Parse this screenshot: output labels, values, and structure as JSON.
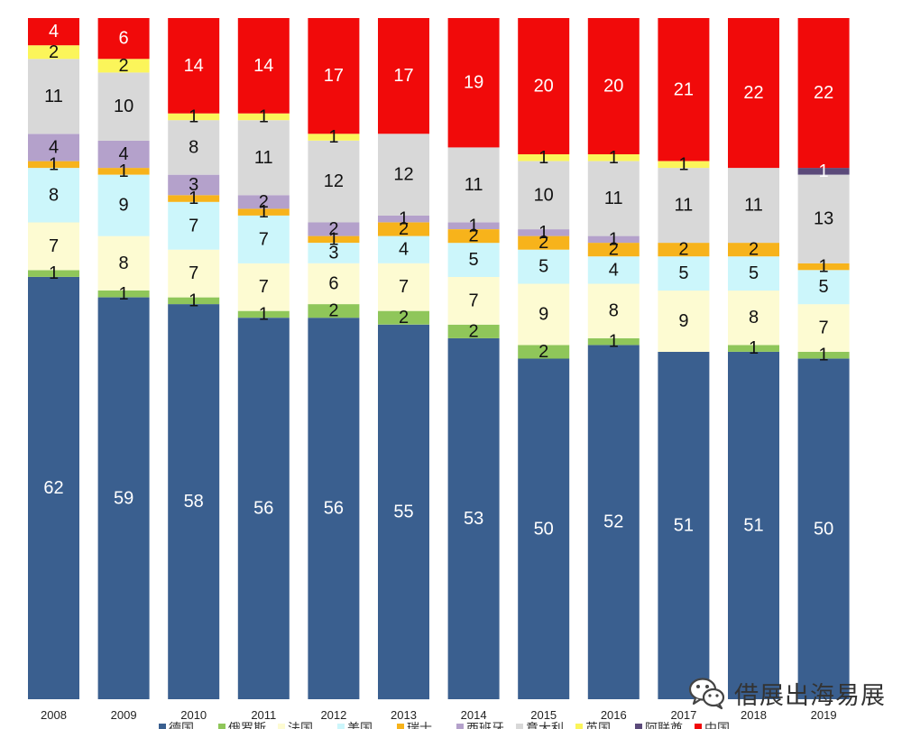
{
  "chart_data": {
    "type": "bar",
    "stacked": true,
    "title": "",
    "xlabel": "",
    "ylabel": "",
    "ylim": [
      0,
      100
    ],
    "grid": false,
    "legend_position": "bottom",
    "categories": [
      "2008",
      "2009",
      "2010",
      "2011",
      "2012",
      "2013",
      "2014",
      "2015",
      "2016",
      "2017",
      "2018",
      "2019"
    ],
    "series": [
      {
        "name": "德国",
        "color": "#3a5f8f",
        "values": [
          62,
          59,
          58,
          56,
          56,
          55,
          53,
          50,
          52,
          51,
          51,
          50
        ],
        "labels": [
          "62",
          "59",
          "58",
          "56",
          "56",
          "55",
          "53",
          "50",
          "52",
          "51",
          "51",
          "50"
        ]
      },
      {
        "name": "俄罗斯",
        "color": "#8fc65a",
        "values": [
          1,
          1,
          1,
          1,
          2,
          2,
          2,
          2,
          1,
          0,
          1,
          1
        ],
        "labels": [
          "1",
          "1",
          "1",
          "1",
          "2",
          "2",
          "2",
          "2",
          "1",
          "",
          "1",
          "1"
        ]
      },
      {
        "name": "法国",
        "color": "#fdfbd2",
        "values": [
          7,
          8,
          7,
          7,
          6,
          7,
          7,
          9,
          8,
          9,
          8,
          7
        ],
        "labels": [
          "7",
          "8",
          "7",
          "7",
          "6",
          "7",
          "7",
          "9",
          "8",
          "9",
          "8",
          "7"
        ]
      },
      {
        "name": "美国",
        "color": "#ccf6fb",
        "values": [
          8,
          9,
          7,
          7,
          3,
          4,
          5,
          5,
          4,
          5,
          5,
          5
        ],
        "labels": [
          "8",
          "9",
          "7",
          "7",
          "3",
          "4",
          "5",
          "5",
          "4",
          "5",
          "5",
          "5"
        ]
      },
      {
        "name": "瑞士",
        "color": "#f7b31b",
        "values": [
          1,
          1,
          1,
          1,
          1,
          2,
          2,
          2,
          2,
          2,
          2,
          1
        ],
        "labels": [
          "1",
          "1",
          "1",
          "1",
          "1",
          "2",
          "2",
          "2",
          "2",
          "2",
          "2",
          "1"
        ]
      },
      {
        "name": "西班牙",
        "color": "#b4a1cb",
        "values": [
          4,
          4,
          3,
          2,
          2,
          1,
          1,
          1,
          1,
          0,
          0,
          0
        ],
        "labels": [
          "4",
          "4",
          "3",
          "2",
          "2",
          "1",
          "1",
          "1",
          "1",
          "",
          "",
          ""
        ]
      },
      {
        "name": "意大利",
        "color": "#d8d8d8",
        "values": [
          11,
          10,
          8,
          11,
          12,
          12,
          11,
          10,
          11,
          11,
          11,
          13
        ],
        "labels": [
          "11",
          "10",
          "8",
          "11",
          "12",
          "12",
          "11",
          "10",
          "11",
          "11",
          "11",
          "13"
        ]
      },
      {
        "name": "英国",
        "color": "#fbf55a",
        "values": [
          2,
          2,
          1,
          1,
          1,
          0,
          0,
          1,
          1,
          1,
          0,
          0
        ],
        "labels": [
          "2",
          "2",
          "1",
          "1",
          "1",
          "",
          "",
          "1",
          "1",
          "1",
          "",
          ""
        ]
      },
      {
        "name": "阿联酋",
        "color": "#5b4a7a",
        "values": [
          0,
          0,
          0,
          0,
          0,
          0,
          0,
          0,
          0,
          0,
          0,
          1
        ],
        "labels": [
          "",
          "",
          "",
          "",
          "",
          "",
          "",
          "",
          "",
          "",
          "",
          "1"
        ]
      },
      {
        "name": "中国",
        "color": "#f10a0a",
        "values": [
          4,
          6,
          14,
          14,
          17,
          17,
          19,
          20,
          20,
          21,
          22,
          22
        ],
        "labels": [
          "4",
          "6",
          "14",
          "14",
          "17",
          "17",
          "19",
          "20",
          "20",
          "21",
          "22",
          "22"
        ]
      }
    ]
  },
  "watermark": {
    "text": "借展出海易展",
    "icon": "wechat-icon"
  }
}
